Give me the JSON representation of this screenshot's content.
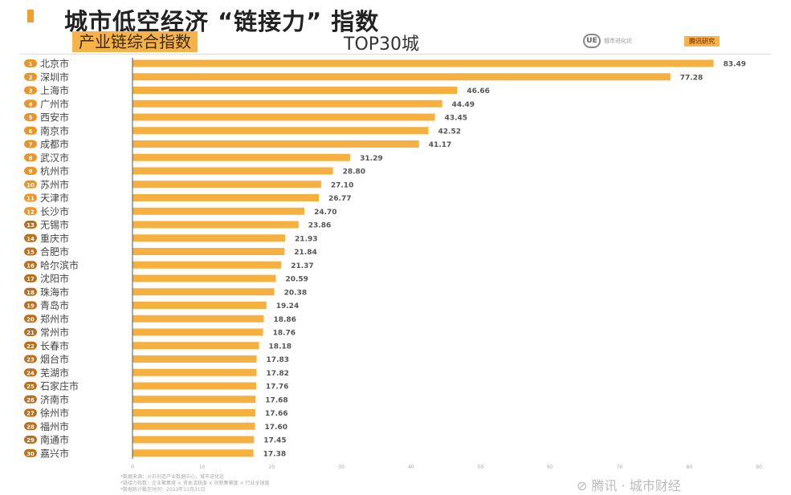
{
  "header": {
    "title": "城市低空经济 “链接力” 指数",
    "subtitle": "产业链综合指数",
    "top": "TOP30城",
    "logo_icon": "UE",
    "logo_text": "城市进化论",
    "tag": "腾讯研究"
  },
  "footer": {
    "notes": [
      "*数据来源：火石创造产业数据中心，城市进化论",
      "*链接力指数：企业聚集度 × 资本活跃度 × 创新集聚度 × 行业全球度",
      "*数据统计截至时间：2023年11月31日"
    ],
    "brand": "⊘ 腾讯 · 城市财经"
  },
  "chart_data": {
    "type": "bar",
    "orientation": "horizontal",
    "title": "城市低空经济 “链接力” 指数 产业链综合指数 TOP30城",
    "categories": [
      "北京市",
      "深圳市",
      "上海市",
      "广州市",
      "西安市",
      "南京市",
      "成都市",
      "武汉市",
      "杭州市",
      "苏州市",
      "天津市",
      "长沙市",
      "无锡市",
      "重庆市",
      "合肥市",
      "哈尔滨市",
      "沈阳市",
      "珠海市",
      "青岛市",
      "郑州市",
      "常州市",
      "长春市",
      "烟台市",
      "芜湖市",
      "石家庄市",
      "济南市",
      "徐州市",
      "福州市",
      "南通市",
      "嘉兴市"
    ],
    "values": [
      83.49,
      77.28,
      46.66,
      44.49,
      43.45,
      42.52,
      41.17,
      31.29,
      28.8,
      27.1,
      26.77,
      24.7,
      23.86,
      21.93,
      21.84,
      21.37,
      20.59,
      20.38,
      19.24,
      18.86,
      18.76,
      18.18,
      17.83,
      17.82,
      17.76,
      17.68,
      17.66,
      17.6,
      17.45,
      17.38
    ],
    "value_labels": [
      "83.49",
      "77.28",
      "46.66",
      "44.49",
      "43.45",
      "42.52",
      "41.17",
      "31.29",
      "28.80",
      "27.10",
      "26.77",
      "24.70",
      "23.86",
      "21.93",
      "21.84",
      "21.37",
      "20.59",
      "20.38",
      "19.24",
      "18.86",
      "18.76",
      "18.18",
      "17.83",
      "17.82",
      "17.76",
      "17.68",
      "17.66",
      "17.60",
      "17.45",
      "17.38"
    ],
    "xlim": [
      0,
      90
    ],
    "xticks": [
      0,
      10,
      20,
      30,
      40,
      50,
      60,
      70,
      80,
      90
    ],
    "colors": {
      "bar": "#f5b040",
      "badge": "#e8952a",
      "badge_dark": "#b8701e"
    }
  }
}
